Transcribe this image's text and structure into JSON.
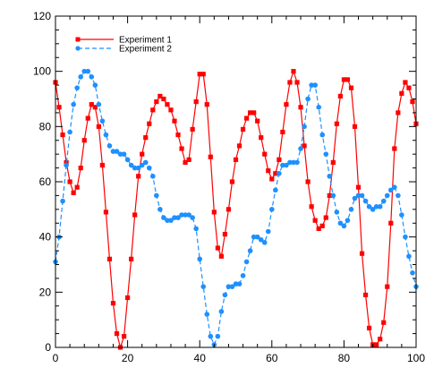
{
  "chart_data": {
    "type": "line",
    "xlim": [
      0,
      100
    ],
    "ylim": [
      0,
      120
    ],
    "x_ticks": [
      0,
      20,
      40,
      60,
      80,
      100
    ],
    "y_ticks": [
      0,
      20,
      40,
      60,
      80,
      100,
      120
    ],
    "x_tick_labels": [
      "0",
      "20",
      "40",
      "60",
      "80",
      "100"
    ],
    "y_tick_labels": [
      "0",
      "20",
      "40",
      "60",
      "80",
      "100",
      "120"
    ],
    "legend_position": "top-left",
    "grid": false,
    "x": [
      0,
      1,
      2,
      3,
      4,
      5,
      6,
      7,
      8,
      9,
      10,
      11,
      12,
      13,
      14,
      15,
      16,
      17,
      18,
      19,
      20,
      21,
      22,
      23,
      24,
      25,
      26,
      27,
      28,
      29,
      30,
      31,
      32,
      33,
      34,
      35,
      36,
      37,
      38,
      39,
      40,
      41,
      42,
      43,
      44,
      45,
      46,
      47,
      48,
      49,
      50,
      51,
      52,
      53,
      54,
      55,
      56,
      57,
      58,
      59,
      60,
      61,
      62,
      63,
      64,
      65,
      66,
      67,
      68,
      69,
      70,
      71,
      72,
      73,
      74,
      75,
      76,
      77,
      78,
      79,
      80,
      81,
      82,
      83,
      84,
      85,
      86,
      87,
      88,
      89,
      90,
      91,
      92,
      93,
      94,
      95,
      96,
      97,
      98,
      99,
      100
    ],
    "series": [
      {
        "name": "Experiment 1",
        "color": "#ff0000",
        "line_style": "solid",
        "marker": "square",
        "values": [
          96,
          87,
          77,
          67,
          60,
          56,
          58,
          65,
          75,
          83,
          88,
          87,
          80,
          66,
          49,
          32,
          16,
          5,
          0,
          4,
          18,
          32,
          48,
          62,
          70,
          76,
          81,
          86,
          89,
          91,
          90,
          88,
          86,
          82,
          77,
          72,
          67,
          68,
          79,
          89,
          99,
          99,
          88,
          69,
          49,
          36,
          33,
          41,
          50,
          60,
          68,
          73,
          79,
          83,
          85,
          85,
          82,
          76,
          70,
          64,
          61,
          63,
          68,
          78,
          88,
          96,
          100,
          96,
          87,
          73,
          60,
          51,
          46,
          43,
          44,
          47,
          55,
          67,
          81,
          91,
          97,
          97,
          94,
          80,
          58,
          34,
          19,
          7,
          1,
          1,
          3,
          9,
          22,
          45,
          72,
          85,
          92,
          96,
          94,
          89,
          81
        ]
      },
      {
        "name": "Experiment 2",
        "color": "#1e90ff",
        "line_style": "dashed",
        "marker": "circle",
        "values": [
          31,
          40,
          53,
          66,
          78,
          88,
          94,
          98,
          100,
          100,
          98,
          95,
          88,
          82,
          77,
          73,
          71,
          71,
          70,
          70,
          68,
          66,
          65,
          65,
          66,
          67,
          65,
          62,
          55,
          50,
          47,
          46,
          46,
          47,
          47,
          48,
          48,
          48,
          47,
          43,
          32,
          22,
          12,
          4,
          1,
          4,
          13,
          19,
          22,
          22,
          23,
          23,
          26,
          31,
          35,
          40,
          40,
          39,
          38,
          42,
          50,
          57,
          63,
          66,
          66,
          67,
          67,
          67,
          72,
          80,
          90,
          95,
          95,
          87,
          77,
          70,
          62,
          55,
          49,
          45,
          44,
          46,
          50,
          54,
          55,
          55,
          53,
          51,
          50,
          51,
          51,
          53,
          55,
          57,
          58,
          55,
          48,
          40,
          33,
          27,
          22
        ]
      }
    ]
  }
}
